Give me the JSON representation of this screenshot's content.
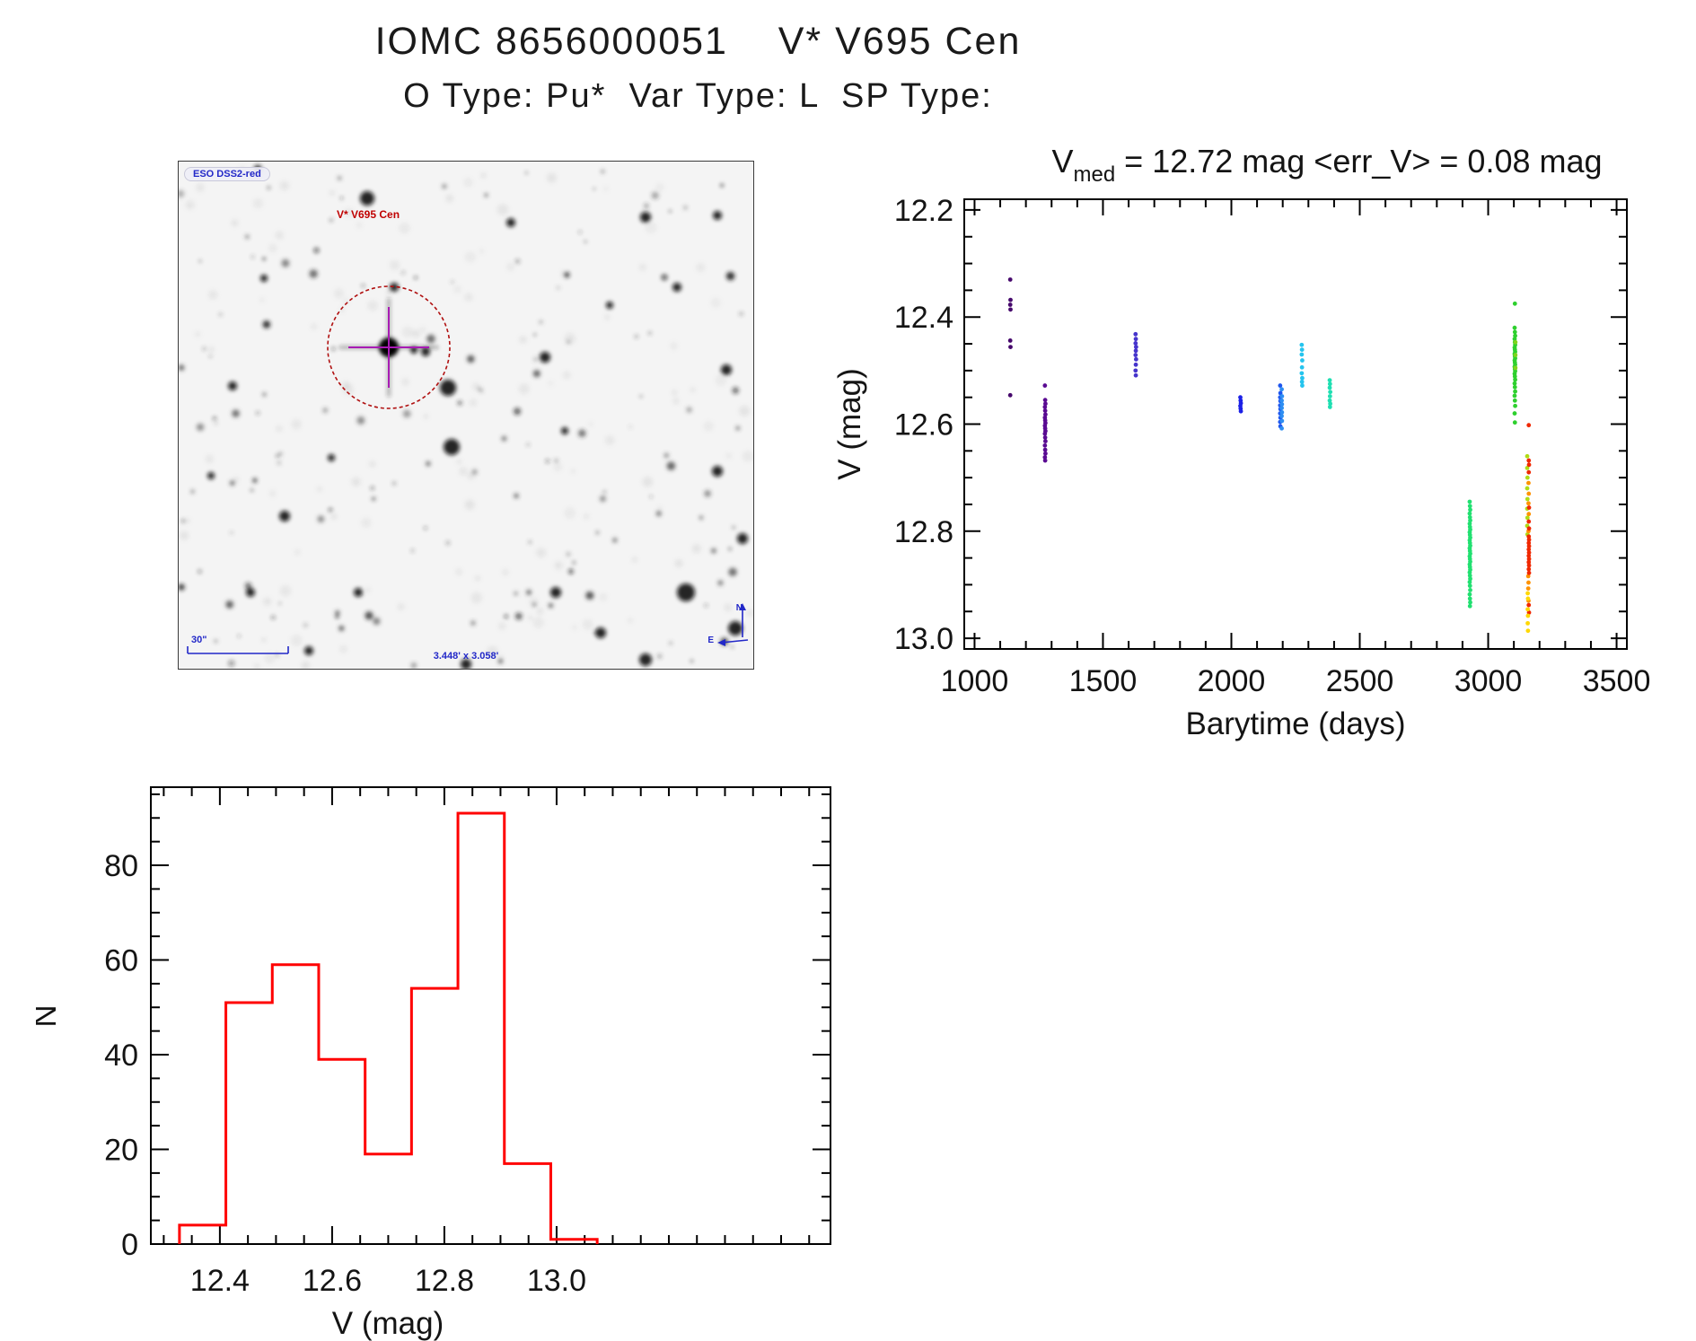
{
  "header": {
    "title": "IOMC 8656000051    V* V695 Cen",
    "subtitle": "O Type: Pu*  Var Type: L  SP Type:"
  },
  "finder": {
    "survey_tag": "ESO DSS2-red",
    "target_label": "V* V695 Cen",
    "scale_bar_label": "30\"",
    "fov_label": "3.448' x 3.058'",
    "compass_north": "N",
    "compass_east": "E",
    "annotation_blue": "#2228c8",
    "target_label_red": "#c00000",
    "circle_color": "#b01010",
    "crosshair_color": "#a81cb4"
  },
  "chart_data": [
    {
      "type": "scatter",
      "name": "light-curve",
      "title_v": "V",
      "title_sub": "med",
      "title_rest": " = 12.72 mag <err_V> = 0.08 mag",
      "xlabel": "Barytime (days)",
      "ylabel": "V (mag)",
      "xlim": [
        960,
        3540
      ],
      "ylim": [
        12.18,
        13.02
      ],
      "xticks": [
        1000,
        1500,
        2000,
        2500,
        3000,
        3500
      ],
      "xtick_labels": [
        "1000",
        "1500",
        "2000",
        "2500",
        "3000",
        "3500"
      ],
      "yticks": [
        12.2,
        12.4,
        12.6,
        12.8,
        13.0
      ],
      "ytick_labels": [
        "12.2",
        "12.4",
        "12.6",
        "12.8",
        "13.0"
      ],
      "x_minor_step": 100,
      "y_minor_step": 0.05,
      "grid": false,
      "legend": "none",
      "series": [
        {
          "name": "epoch-1140",
          "color": "#46086c",
          "points": [
            [
              1139,
              12.33
            ],
            [
              1140,
              12.368
            ],
            [
              1139,
              12.377
            ],
            [
              1140,
              12.386
            ],
            [
              1139,
              12.444
            ],
            [
              1140,
              12.456
            ],
            [
              1139,
              12.546
            ]
          ]
        },
        {
          "name": "epoch-1275",
          "color": "#5a0b92",
          "points": [
            [
              1274,
              12.528
            ],
            [
              1275,
              12.555
            ],
            [
              1276,
              12.562
            ],
            [
              1274,
              12.568
            ],
            [
              1275,
              12.575
            ],
            [
              1276,
              12.582
            ],
            [
              1274,
              12.588
            ],
            [
              1275,
              12.593
            ],
            [
              1276,
              12.598
            ],
            [
              1274,
              12.603
            ],
            [
              1275,
              12.608
            ],
            [
              1276,
              12.613
            ],
            [
              1274,
              12.618
            ],
            [
              1275,
              12.625
            ],
            [
              1276,
              12.632
            ],
            [
              1274,
              12.64
            ],
            [
              1275,
              12.648
            ],
            [
              1276,
              12.655
            ],
            [
              1274,
              12.662
            ],
            [
              1275,
              12.668
            ]
          ]
        },
        {
          "name": "epoch-1628",
          "color": "#4634cc",
          "points": [
            [
              1627,
              12.432
            ],
            [
              1628,
              12.441
            ],
            [
              1627,
              12.449
            ],
            [
              1629,
              12.456
            ],
            [
              1628,
              12.463
            ],
            [
              1627,
              12.471
            ],
            [
              1629,
              12.479
            ],
            [
              1628,
              12.489
            ],
            [
              1627,
              12.5
            ],
            [
              1628,
              12.509
            ]
          ]
        },
        {
          "name": "epoch-2036",
          "color": "#1b20e6",
          "points": [
            [
              2035,
              12.55
            ],
            [
              2036,
              12.556
            ],
            [
              2037,
              12.561
            ],
            [
              2035,
              12.566
            ],
            [
              2036,
              12.571
            ],
            [
              2037,
              12.576
            ]
          ]
        },
        {
          "name": "epoch-2193-a",
          "color": "#1d55ee",
          "points": [
            [
              2190,
              12.528
            ],
            [
              2191,
              12.542
            ],
            [
              2190,
              12.55
            ],
            [
              2191,
              12.557
            ],
            [
              2190,
              12.565
            ],
            [
              2191,
              12.572
            ],
            [
              2190,
              12.58
            ],
            [
              2191,
              12.588
            ],
            [
              2190,
              12.596
            ],
            [
              2191,
              12.604
            ]
          ]
        },
        {
          "name": "epoch-2193-b",
          "color": "#2e8ef2",
          "points": [
            [
              2196,
              12.535
            ],
            [
              2197,
              12.548
            ],
            [
              2196,
              12.556
            ],
            [
              2197,
              12.563
            ],
            [
              2196,
              12.57
            ],
            [
              2197,
              12.578
            ],
            [
              2196,
              12.585
            ],
            [
              2197,
              12.594
            ],
            [
              2196,
              12.608
            ]
          ]
        },
        {
          "name": "epoch-2275",
          "color": "#25c4ee",
          "points": [
            [
              2274,
              12.452
            ],
            [
              2275,
              12.461
            ],
            [
              2274,
              12.47
            ],
            [
              2276,
              12.481
            ],
            [
              2275,
              12.494
            ],
            [
              2274,
              12.505
            ],
            [
              2276,
              12.514
            ],
            [
              2275,
              12.521
            ],
            [
              2276,
              12.528
            ]
          ]
        },
        {
          "name": "epoch-2384",
          "color": "#1fdfb2",
          "points": [
            [
              2383,
              12.518
            ],
            [
              2384,
              12.525
            ],
            [
              2383,
              12.532
            ],
            [
              2385,
              12.54
            ],
            [
              2384,
              12.548
            ],
            [
              2383,
              12.556
            ],
            [
              2385,
              12.562
            ],
            [
              2384,
              12.568
            ]
          ]
        },
        {
          "name": "epoch-2929",
          "color": "#21e070",
          "points": [
            [
              2928,
              12.745
            ],
            [
              2929,
              12.753
            ],
            [
              2930,
              12.76
            ],
            [
              2928,
              12.767
            ],
            [
              2929,
              12.774
            ],
            [
              2930,
              12.78
            ],
            [
              2928,
              12.786
            ],
            [
              2929,
              12.792
            ],
            [
              2930,
              12.797
            ],
            [
              2928,
              12.802
            ],
            [
              2929,
              12.807
            ],
            [
              2930,
              12.812
            ],
            [
              2928,
              12.817
            ],
            [
              2929,
              12.822
            ],
            [
              2930,
              12.827
            ],
            [
              2928,
              12.832
            ],
            [
              2929,
              12.837
            ],
            [
              2930,
              12.842
            ],
            [
              2928,
              12.847
            ],
            [
              2929,
              12.852
            ],
            [
              2930,
              12.857
            ],
            [
              2928,
              12.862
            ],
            [
              2929,
              12.867
            ],
            [
              2930,
              12.872
            ],
            [
              2928,
              12.877
            ],
            [
              2929,
              12.883
            ],
            [
              2930,
              12.889
            ],
            [
              2928,
              12.895
            ],
            [
              2929,
              12.902
            ],
            [
              2930,
              12.91
            ],
            [
              2928,
              12.918
            ],
            [
              2929,
              12.926
            ],
            [
              2930,
              12.933
            ],
            [
              2929,
              12.94
            ]
          ]
        },
        {
          "name": "epoch-3104-green",
          "color": "#2ed02e",
          "points": [
            [
              3104,
              12.375
            ],
            [
              3103,
              12.42
            ],
            [
              3104,
              12.428
            ],
            [
              3105,
              12.435
            ],
            [
              3103,
              12.441
            ],
            [
              3104,
              12.447
            ],
            [
              3105,
              12.452
            ],
            [
              3103,
              12.457
            ],
            [
              3104,
              12.461
            ],
            [
              3105,
              12.465
            ],
            [
              3103,
              12.469
            ],
            [
              3104,
              12.473
            ],
            [
              3105,
              12.477
            ],
            [
              3103,
              12.481
            ],
            [
              3104,
              12.485
            ],
            [
              3105,
              12.489
            ],
            [
              3103,
              12.493
            ],
            [
              3104,
              12.497
            ],
            [
              3105,
              12.501
            ],
            [
              3103,
              12.506
            ],
            [
              3104,
              12.511
            ],
            [
              3105,
              12.517
            ],
            [
              3103,
              12.524
            ],
            [
              3104,
              12.531
            ],
            [
              3105,
              12.539
            ],
            [
              3103,
              12.547
            ],
            [
              3104,
              12.556
            ],
            [
              3105,
              12.566
            ],
            [
              3103,
              12.58
            ],
            [
              3104,
              12.597
            ]
          ]
        },
        {
          "name": "epoch-3104-yellowgreen",
          "color": "#7fd41c",
          "points": [
            [
              3106,
              12.447
            ],
            [
              3106,
              12.471
            ],
            [
              3106,
              12.495
            ]
          ]
        },
        {
          "name": "epoch-3155-chartreuse",
          "color": "#b0dc14",
          "points": [
            [
              3152,
              12.66
            ],
            [
              3152,
              12.682
            ],
            [
              3153,
              12.7
            ],
            [
              3152,
              12.72
            ],
            [
              3153,
              12.74
            ],
            [
              3152,
              12.758
            ],
            [
              3153,
              12.775
            ],
            [
              3152,
              12.79
            ],
            [
              3153,
              12.806
            ]
          ]
        },
        {
          "name": "epoch-3155-orange",
          "color": "#ff9300",
          "points": [
            [
              3157,
              12.71
            ],
            [
              3158,
              12.73
            ],
            [
              3157,
              12.748
            ],
            [
              3158,
              12.768
            ],
            [
              3157,
              12.8
            ],
            [
              3156,
              12.884
            ],
            [
              3157,
              12.896
            ],
            [
              3156,
              12.907
            ],
            [
              3157,
              12.93
            ]
          ]
        },
        {
          "name": "epoch-3155-red",
          "color": "#f02800",
          "points": [
            [
              3158,
              12.602
            ],
            [
              3158,
              12.668
            ],
            [
              3159,
              12.676
            ],
            [
              3158,
              12.69
            ],
            [
              3159,
              12.756
            ],
            [
              3158,
              12.782
            ],
            [
              3159,
              12.795
            ],
            [
              3158,
              12.81
            ],
            [
              3159,
              12.816
            ],
            [
              3158,
              12.822
            ],
            [
              3159,
              12.828
            ],
            [
              3158,
              12.834
            ],
            [
              3159,
              12.84
            ],
            [
              3158,
              12.846
            ],
            [
              3159,
              12.852
            ],
            [
              3158,
              12.858
            ],
            [
              3159,
              12.864
            ],
            [
              3158,
              12.871
            ],
            [
              3159,
              12.878
            ],
            [
              3158,
              12.938
            ],
            [
              3159,
              12.952
            ]
          ]
        },
        {
          "name": "epoch-3155-yellow",
          "color": "#ffd800",
          "points": [
            [
              3154,
              12.916
            ],
            [
              3155,
              12.926
            ],
            [
              3154,
              12.946
            ],
            [
              3155,
              12.958
            ],
            [
              3154,
              12.972
            ],
            [
              3155,
              12.986
            ]
          ]
        }
      ]
    },
    {
      "type": "bar",
      "name": "magnitude-histogram",
      "xlabel": "V (mag)",
      "ylabel": "N",
      "bin_start": 12.328,
      "bin_width": 0.0827,
      "counts": [
        4,
        51,
        59,
        39,
        19,
        54,
        91,
        17,
        1
      ],
      "xlim": [
        12.277,
        13.488
      ],
      "ylim": [
        0,
        96.5
      ],
      "xticks": [
        12.4,
        12.6,
        12.8,
        13.0
      ],
      "xtick_labels": [
        "12.4",
        "12.6",
        "12.8",
        "13.0"
      ],
      "yticks": [
        0,
        20,
        40,
        60,
        80
      ],
      "ytick_labels": [
        "0",
        "20",
        "40",
        "60",
        "80"
      ],
      "x_minor_step": 0.05,
      "y_minor_step": 5,
      "bar_color": "#ff0000",
      "grid": false
    }
  ]
}
